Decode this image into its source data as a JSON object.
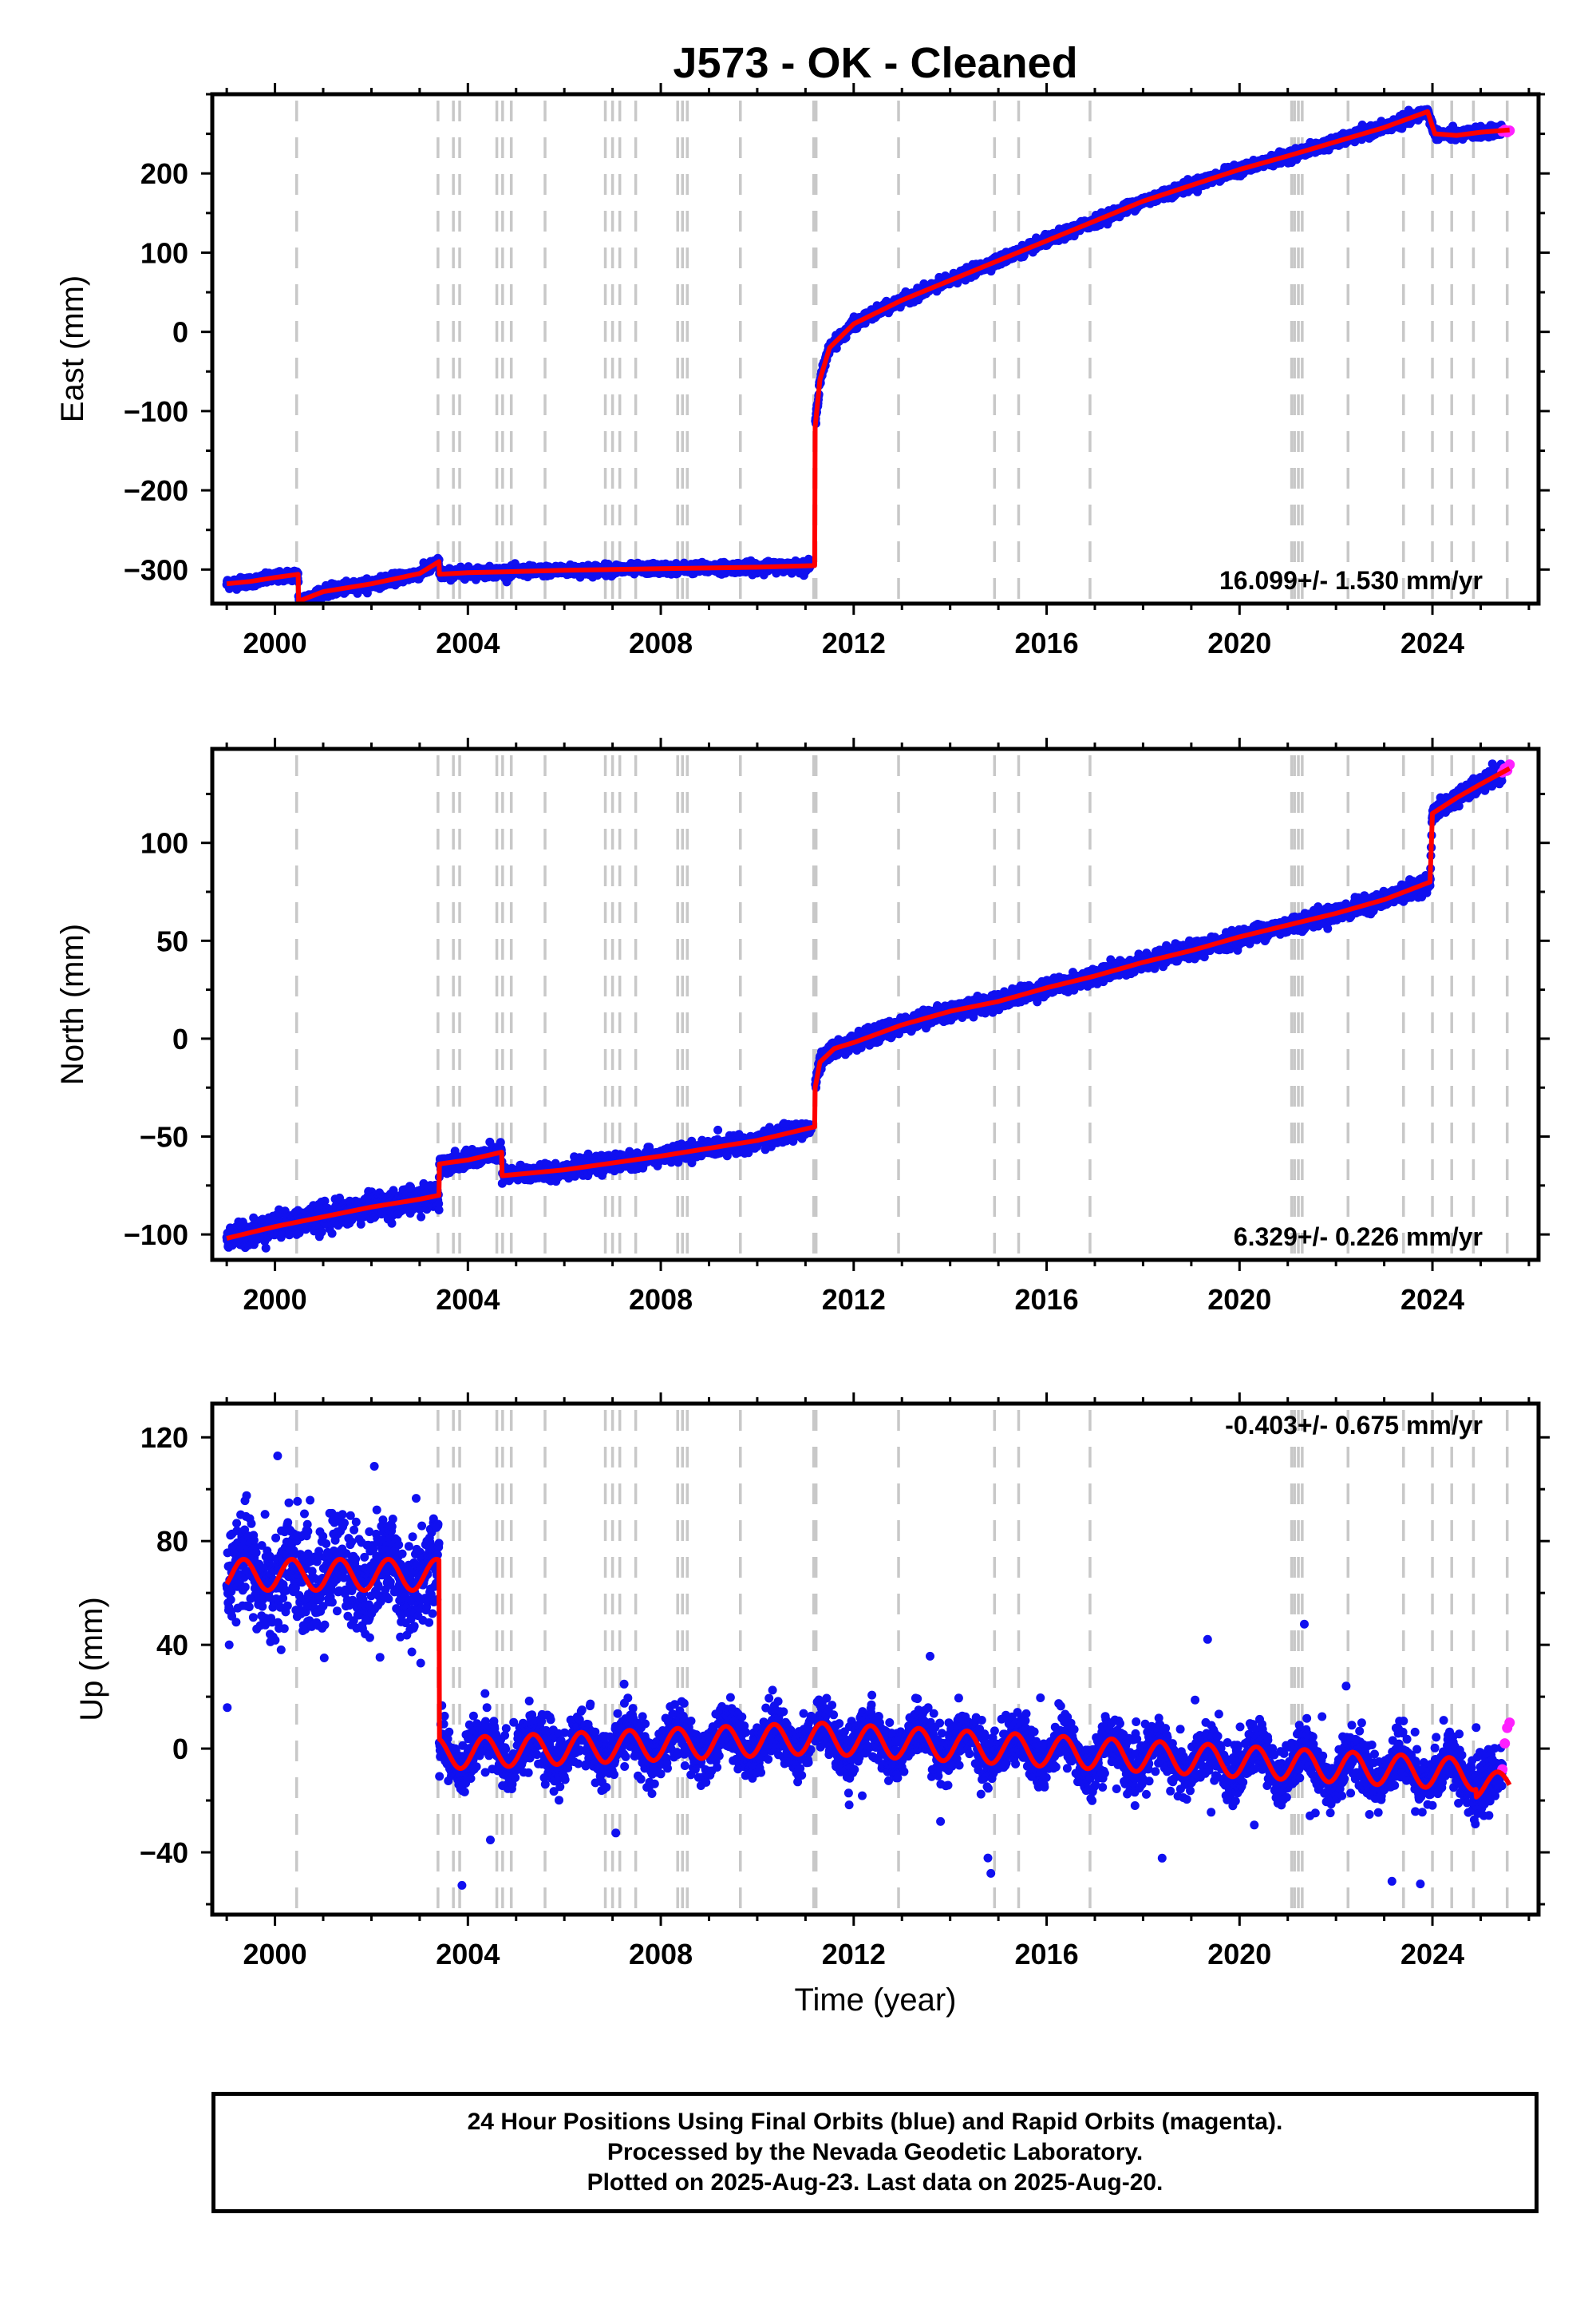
{
  "title": "J573  - OK - Cleaned",
  "x_axis_label": "Time (year)",
  "colors": {
    "final": "#1010f0",
    "rapid": "#ff20ff",
    "model": "#ff0000",
    "event_line": "#c8c8c8"
  },
  "footer": {
    "line1": "24 Hour Positions Using Final Orbits (blue) and Rapid Orbits (magenta).",
    "line2": "Processed by the Nevada Geodetic Laboratory.",
    "line3": "Plotted on 2025-Aug-23. Last data on 2025-Aug-20."
  },
  "chart_data": [
    {
      "type": "scatter",
      "component": "east",
      "ylabel": "East (mm)",
      "rate_text": "16.099+/- 1.530 mm/yr",
      "xlim": [
        1998.7,
        2026.2
      ],
      "ylim": [
        -343,
        300
      ],
      "xticks": [
        2000,
        2004,
        2008,
        2012,
        2016,
        2020,
        2024
      ],
      "yticks": [
        -300,
        -200,
        -100,
        0,
        100,
        200
      ],
      "series": [
        {
          "role": "model",
          "x": [
            1999.0,
            1999.5,
            2000.0,
            2000.48,
            2000.49,
            2001.0,
            2002.0,
            2003.0,
            2003.4,
            2003.41,
            2004.0,
            2006.0,
            2008.0,
            2010.0,
            2011.19,
            2011.2,
            2011.3,
            2011.5,
            2012.0,
            2013.0,
            2014.0,
            2015.0,
            2016.0,
            2017.0,
            2018.0,
            2019.0,
            2020.0,
            2021.0,
            2022.0,
            2023.0,
            2023.9,
            2024.05,
            2024.5,
            2025.0,
            2025.6
          ],
          "y": [
            -318,
            -315,
            -310,
            -306,
            -340,
            -328,
            -318,
            -305,
            -290,
            -306,
            -304,
            -301,
            -299,
            -297,
            -295,
            -120,
            -60,
            -20,
            10,
            40,
            65,
            90,
            115,
            140,
            165,
            185,
            205,
            222,
            240,
            258,
            278,
            250,
            248,
            252,
            255
          ]
        },
        {
          "role": "rapid",
          "x": [
            2025.45,
            2025.5,
            2025.55,
            2025.6
          ],
          "y": [
            253,
            255,
            252,
            254
          ]
        }
      ]
    },
    {
      "type": "scatter",
      "component": "north",
      "ylabel": "North (mm)",
      "rate_text": "6.329+/- 0.226 mm/yr",
      "xlim": [
        1998.7,
        2026.2
      ],
      "ylim": [
        -113,
        148
      ],
      "xticks": [
        2000,
        2004,
        2008,
        2012,
        2016,
        2020,
        2024
      ],
      "yticks": [
        -100,
        -50,
        0,
        50,
        100
      ],
      "series": [
        {
          "role": "model",
          "x": [
            1999.0,
            2000.0,
            2001.0,
            2002.0,
            2003.0,
            2003.4,
            2003.41,
            2004.0,
            2004.7,
            2004.71,
            2006.0,
            2008.0,
            2010.0,
            2011.19,
            2011.2,
            2011.3,
            2011.6,
            2012.0,
            2013.0,
            2014.0,
            2015.0,
            2016.0,
            2017.0,
            2018.0,
            2019.0,
            2020.0,
            2021.0,
            2022.0,
            2023.0,
            2023.95,
            2024.0,
            2024.5,
            2025.0,
            2025.6
          ],
          "y": [
            -102,
            -96,
            -91,
            -86,
            -82,
            -80,
            -64,
            -62,
            -58,
            -70,
            -67,
            -60,
            -52,
            -45,
            -25,
            -12,
            -5,
            -2,
            7,
            14,
            19,
            26,
            32,
            39,
            45,
            52,
            58,
            64,
            71,
            80,
            115,
            123,
            130,
            138
          ]
        },
        {
          "role": "rapid",
          "x": [
            2025.45,
            2025.5,
            2025.55,
            2025.6
          ],
          "y": [
            136,
            138,
            137,
            140
          ]
        }
      ]
    },
    {
      "type": "scatter",
      "component": "up",
      "ylabel": "Up (mm)",
      "rate_text": "-0.403+/- 0.675 mm/yr",
      "xlim": [
        1998.7,
        2026.2
      ],
      "ylim": [
        -64,
        133
      ],
      "xticks": [
        2000,
        2004,
        2008,
        2012,
        2016,
        2020,
        2024
      ],
      "yticks": [
        -40,
        0,
        40,
        80,
        120
      ],
      "series": [
        {
          "role": "model_seasonal",
          "segments": [
            {
              "x0": 1999.0,
              "x1": 2003.4,
              "base": 67,
              "amp": 6
            },
            {
              "x0": 2003.41,
              "x1": 2011.2,
              "base": -2,
              "base_end": 4,
              "amp": 6
            },
            {
              "x0": 2011.21,
              "x1": 2024.9,
              "base": 4,
              "base_end": -10,
              "amp": 6
            },
            {
              "x0": 2024.91,
              "x1": 2025.6,
              "base": -14,
              "amp": 5
            }
          ]
        },
        {
          "role": "rapid",
          "x": [
            2025.45,
            2025.5,
            2025.55,
            2025.6
          ],
          "y": [
            -8,
            2,
            8,
            10
          ]
        }
      ]
    }
  ],
  "event_lines": [
    2000.45,
    2003.38,
    2003.7,
    2003.83,
    2004.6,
    2004.72,
    2004.9,
    2005.6,
    2006.85,
    2007.0,
    2007.15,
    2007.48,
    2008.35,
    2008.45,
    2008.55,
    2009.65,
    2011.17,
    2011.22,
    2012.93,
    2014.92,
    2015.42,
    2016.9,
    2021.08,
    2021.14,
    2021.22,
    2021.3,
    2022.25,
    2023.4,
    2024.0,
    2024.4,
    2024.85,
    2025.55
  ]
}
